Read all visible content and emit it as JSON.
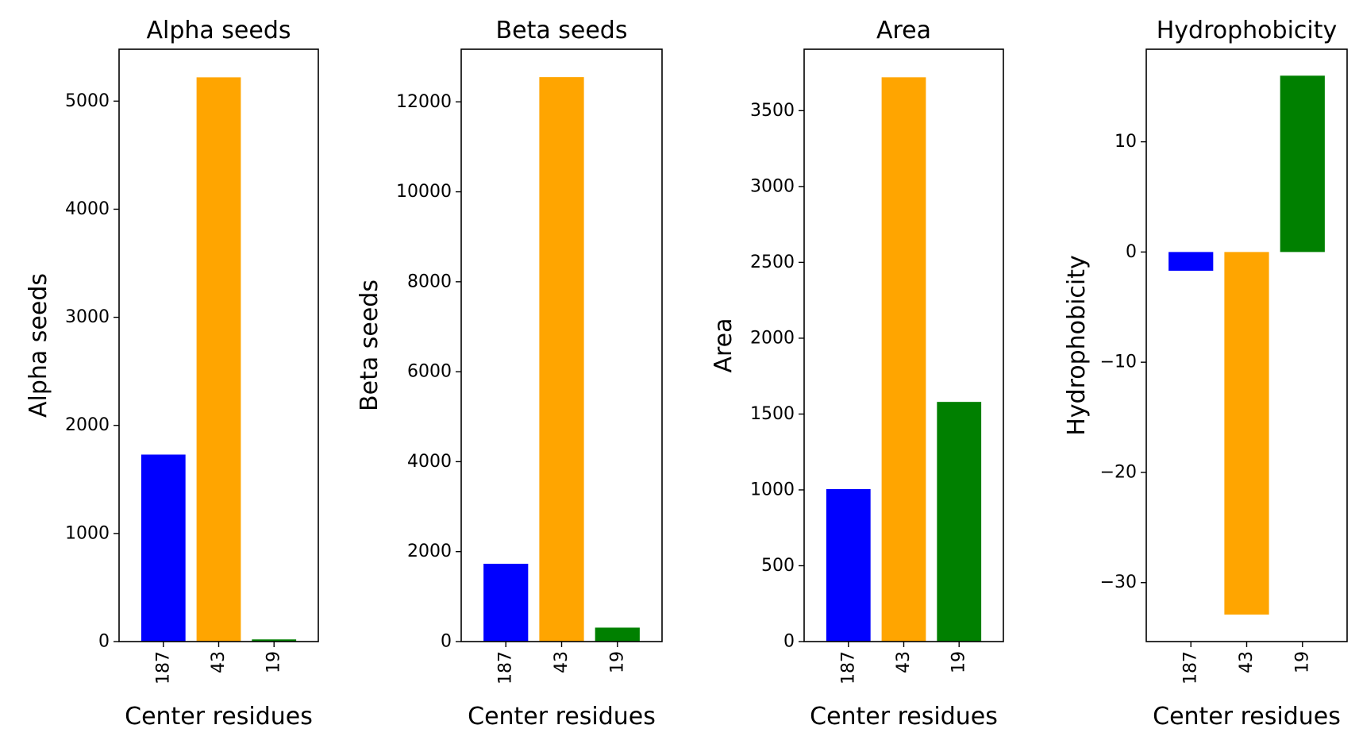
{
  "chart_data": [
    {
      "type": "bar",
      "title": "Alpha seeds",
      "xlabel": "Center residues",
      "ylabel": "Alpha seeds",
      "categories": [
        "187",
        "43",
        "19"
      ],
      "values": [
        1730,
        5220,
        20
      ],
      "colors": [
        "#0000ff",
        "#ffa500",
        "#008000"
      ],
      "ylim": [
        0,
        5480
      ],
      "yticks": [
        0,
        1000,
        2000,
        3000,
        4000,
        5000
      ],
      "ytick_labels": [
        "0",
        "1000",
        "2000",
        "3000",
        "4000",
        "5000"
      ],
      "grid": false
    },
    {
      "type": "bar",
      "title": "Beta seeds",
      "xlabel": "Center residues",
      "ylabel": "Beta seeds",
      "categories": [
        "187",
        "43",
        "19"
      ],
      "values": [
        1730,
        12550,
        310
      ],
      "colors": [
        "#0000ff",
        "#ffa500",
        "#008000"
      ],
      "ylim": [
        0,
        13170
      ],
      "yticks": [
        0,
        2000,
        4000,
        6000,
        8000,
        10000,
        12000
      ],
      "ytick_labels": [
        "0",
        "2000",
        "4000",
        "6000",
        "8000",
        "10000",
        "12000"
      ],
      "grid": false
    },
    {
      "type": "bar",
      "title": "Area",
      "xlabel": "Center residues",
      "ylabel": "Area",
      "categories": [
        "187",
        "43",
        "19"
      ],
      "values": [
        1005,
        3720,
        1580
      ],
      "colors": [
        "#0000ff",
        "#ffa500",
        "#008000"
      ],
      "ylim": [
        0,
        3905
      ],
      "yticks": [
        0,
        500,
        1000,
        1500,
        2000,
        2500,
        3000,
        3500
      ],
      "ytick_labels": [
        "0",
        "500",
        "1000",
        "1500",
        "2000",
        "2500",
        "3000",
        "3500"
      ],
      "grid": false
    },
    {
      "type": "bar",
      "title": "Hydrophobicity",
      "xlabel": "Center residues",
      "ylabel": "Hydrophobicity",
      "categories": [
        "187",
        "43",
        "19"
      ],
      "values": [
        -1.7,
        -32.9,
        16.0
      ],
      "colors": [
        "#0000ff",
        "#ffa500",
        "#008000"
      ],
      "ylim": [
        -35.35,
        18.4
      ],
      "yticks": [
        -30,
        -20,
        -10,
        0,
        10
      ],
      "ytick_labels": [
        "−30",
        "−20",
        "−10",
        "0",
        "10"
      ],
      "grid": false
    }
  ]
}
